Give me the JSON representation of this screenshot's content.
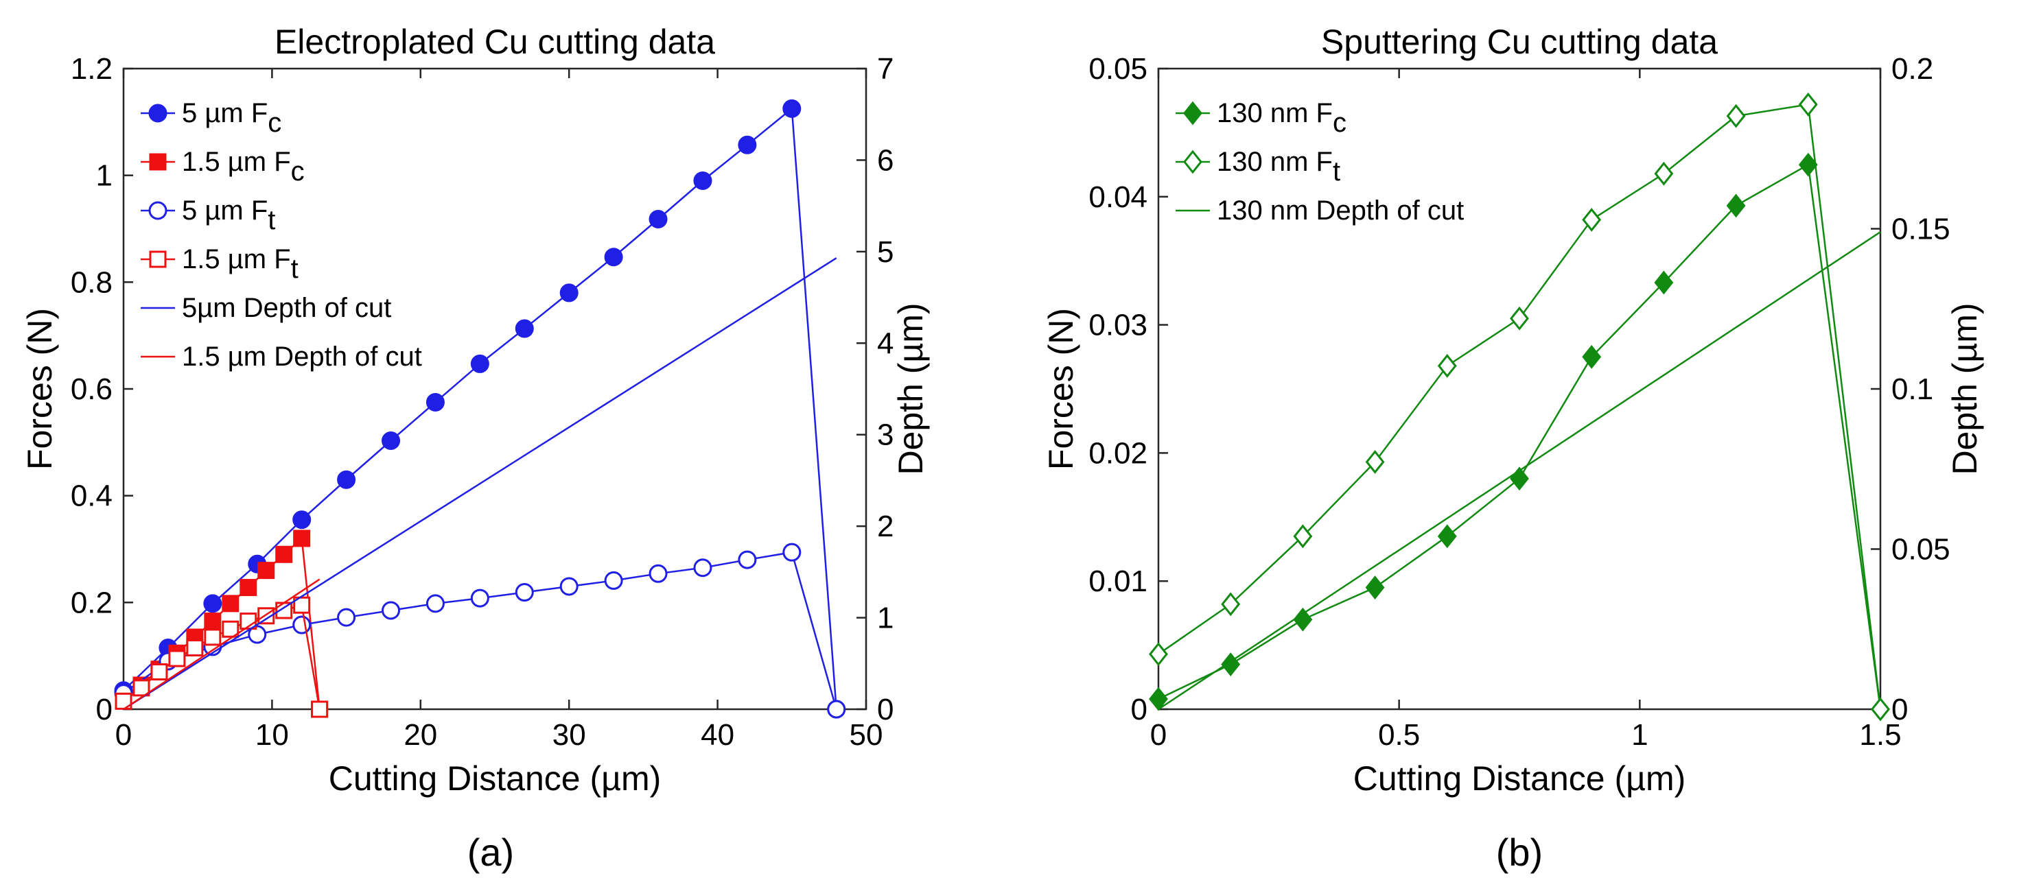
{
  "chart_data": [
    {
      "type": "line",
      "panel_label": "(a)",
      "title": "Electroplated Cu cutting data",
      "xlabel": "Cutting Distance (µm)",
      "ylabel": "Forces (N)",
      "ylabel_right": "Depth (µm)",
      "xlim": [
        0,
        50
      ],
      "ylim": [
        0,
        1.2
      ],
      "ylim_right": [
        0,
        7
      ],
      "xticks": [
        "0",
        "10",
        "20",
        "30",
        "40",
        "50"
      ],
      "yticks": [
        "0",
        "0.2",
        "0.4",
        "0.6",
        "0.8",
        "1",
        "1.2"
      ],
      "yticks_right": [
        "0",
        "1",
        "2",
        "3",
        "4",
        "5",
        "6",
        "7"
      ],
      "grid": false,
      "legend_position": "top-left",
      "series": [
        {
          "legend": {
            "main": "5 µm F",
            "sub": "c"
          },
          "color": "#1f1fe6",
          "marker": "circle",
          "filled": true,
          "axis": "left",
          "x": [
            0,
            3,
            6,
            9,
            12,
            15,
            18,
            21,
            24,
            27,
            30,
            33,
            36,
            39,
            42,
            45,
            48
          ],
          "y": [
            0.035,
            0.115,
            0.198,
            0.272,
            0.355,
            0.43,
            0.503,
            0.575,
            0.647,
            0.713,
            0.78,
            0.847,
            0.918,
            0.99,
            1.057,
            1.125,
            0.0
          ]
        },
        {
          "legend": {
            "main": "1.5 µm F",
            "sub": "c"
          },
          "color": "#ee1111",
          "marker": "square",
          "filled": true,
          "axis": "left",
          "x": [
            0,
            1.2,
            2.4,
            3.6,
            4.8,
            6,
            7.2,
            8.4,
            9.6,
            10.8,
            12,
            13.2
          ],
          "y": [
            0.02,
            0.045,
            0.075,
            0.105,
            0.135,
            0.165,
            0.198,
            0.228,
            0.26,
            0.29,
            0.32,
            0.0
          ]
        },
        {
          "legend": {
            "main": "5 µm F",
            "sub": "t"
          },
          "color": "#1f1fe6",
          "marker": "circle",
          "filled": false,
          "axis": "left",
          "x": [
            0,
            3,
            6,
            9,
            12,
            15,
            18,
            21,
            24,
            27,
            30,
            33,
            36,
            39,
            42,
            45,
            48
          ],
          "y": [
            0.03,
            0.09,
            0.117,
            0.14,
            0.158,
            0.172,
            0.185,
            0.198,
            0.208,
            0.219,
            0.23,
            0.241,
            0.254,
            0.265,
            0.28,
            0.294,
            0.0
          ]
        },
        {
          "legend": {
            "main": "1.5 µm F",
            "sub": "t"
          },
          "color": "#ee1111",
          "marker": "square",
          "filled": false,
          "axis": "left",
          "x": [
            0,
            1.2,
            2.4,
            3.6,
            4.8,
            6,
            7.2,
            8.4,
            9.6,
            10.8,
            12,
            13.2
          ],
          "y": [
            0.015,
            0.04,
            0.07,
            0.095,
            0.115,
            0.135,
            0.15,
            0.165,
            0.175,
            0.185,
            0.195,
            0.0
          ]
        },
        {
          "legend": {
            "main": "5µm Depth of cut",
            "sub": ""
          },
          "color": "#1f1fe6",
          "marker": "none",
          "filled": false,
          "axis": "right",
          "x": [
            0,
            48
          ],
          "y": [
            0.0,
            4.93
          ]
        },
        {
          "legend": {
            "main": "1.5 µm Depth of cut",
            "sub": ""
          },
          "color": "#ee1111",
          "marker": "none",
          "filled": false,
          "axis": "right",
          "x": [
            0,
            13.2
          ],
          "y": [
            0.0,
            1.42
          ]
        }
      ]
    },
    {
      "type": "line",
      "panel_label": "(b)",
      "title": "Sputtering Cu cutting data",
      "xlabel": "Cutting Distance (µm)",
      "ylabel": "Forces (N)",
      "ylabel_right": "Depth (µm)",
      "xlim": [
        0,
        1.5
      ],
      "ylim": [
        0,
        0.05
      ],
      "ylim_right": [
        0,
        0.2
      ],
      "xticks": [
        "0",
        "0.5",
        "1",
        "1.5"
      ],
      "yticks": [
        "0",
        "0.01",
        "0.02",
        "0.03",
        "0.04",
        "0.05"
      ],
      "yticks_right": [
        "0",
        "0.05",
        "0.1",
        "0.15",
        "0.2"
      ],
      "grid": false,
      "legend_position": "top-left",
      "series": [
        {
          "legend": {
            "main": "130 nm F",
            "sub": "c"
          },
          "color": "#108a10",
          "marker": "diamond",
          "filled": true,
          "axis": "left",
          "x": [
            0,
            0.15,
            0.3,
            0.45,
            0.6,
            0.75,
            0.9,
            1.05,
            1.2,
            1.35,
            1.5
          ],
          "y": [
            0.0008,
            0.0035,
            0.007,
            0.0095,
            0.0135,
            0.018,
            0.0275,
            0.0333,
            0.0393,
            0.0425,
            0.0
          ]
        },
        {
          "legend": {
            "main": "130 nm F",
            "sub": "t"
          },
          "color": "#108a10",
          "marker": "diamond",
          "filled": false,
          "axis": "left",
          "x": [
            0,
            0.15,
            0.3,
            0.45,
            0.6,
            0.75,
            0.9,
            1.05,
            1.2,
            1.35,
            1.5
          ],
          "y": [
            0.0043,
            0.0082,
            0.0135,
            0.0193,
            0.0268,
            0.0305,
            0.0382,
            0.0418,
            0.0463,
            0.0472,
            0.0
          ]
        },
        {
          "legend": {
            "main": "130 nm Depth of cut",
            "sub": ""
          },
          "color": "#108a10",
          "marker": "none",
          "filled": false,
          "axis": "right",
          "x": [
            0,
            1.5
          ],
          "y": [
            0.0,
            0.149
          ]
        }
      ]
    }
  ]
}
